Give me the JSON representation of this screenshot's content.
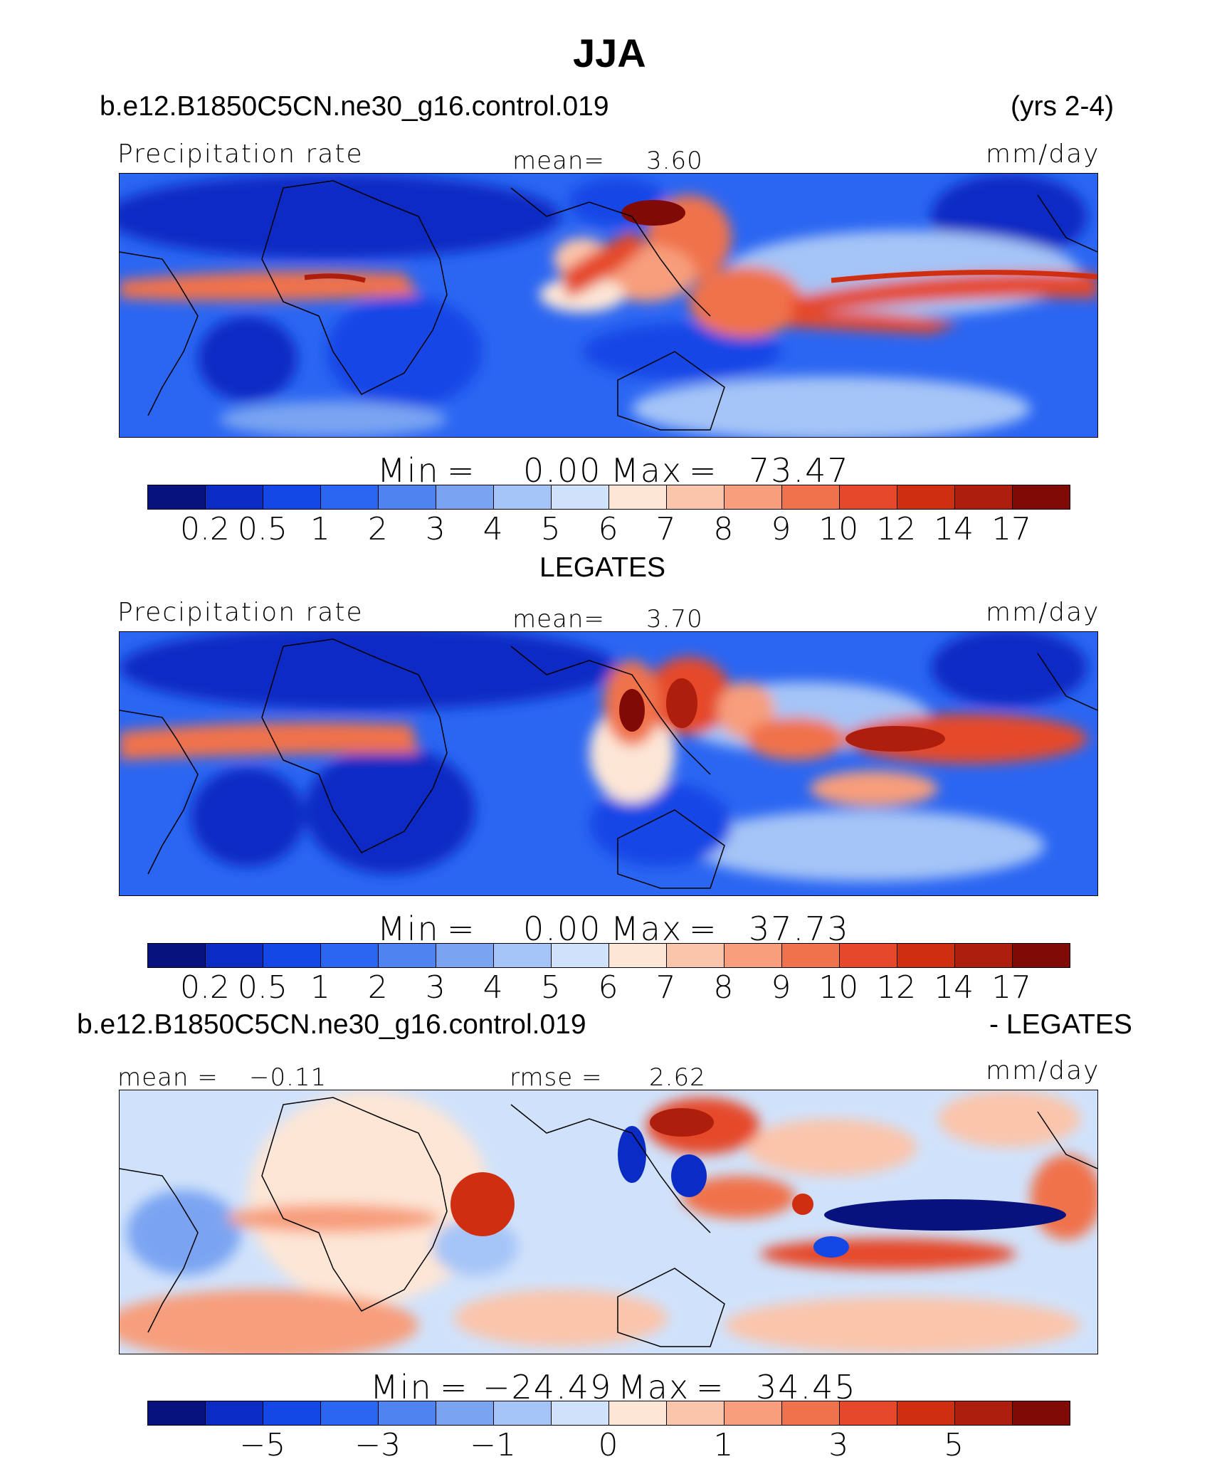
{
  "figure": {
    "title": "JJA",
    "palette": [
      "#08127e",
      "#0b2cc4",
      "#1347e6",
      "#2b66f2",
      "#4f84f0",
      "#7aa4f2",
      "#a5c4f7",
      "#d0e2fb",
      "#fde6d6",
      "#fbc5ab",
      "#f79e7c",
      "#f0724c",
      "#e5482a",
      "#cf2e10",
      "#ad1e0c",
      "#800a05"
    ]
  },
  "panel1": {
    "case": "b.e12.B1850C5CN.ne30_g16.control.019",
    "years": "(yrs 2-4)",
    "variable": "Precipitation rate",
    "mean_label": "mean=",
    "mean_value": "3.60",
    "units": "mm/day",
    "min_label": "Min",
    "min_eq": "=",
    "min_value": "0.00",
    "max_label": "Max",
    "max_eq": "=",
    "max_value": "73.47",
    "ticks": [
      "0.2",
      "0.5",
      "1",
      "2",
      "3",
      "4",
      "5",
      "6",
      "7",
      "8",
      "9",
      "10",
      "12",
      "14",
      "17"
    ]
  },
  "panel2": {
    "case": "LEGATES",
    "variable": "Precipitation rate",
    "mean_label": "mean=",
    "mean_value": "3.70",
    "units": "mm/day",
    "min_label": "Min",
    "min_eq": "=",
    "min_value": "0.00",
    "max_label": "Max",
    "max_eq": "=",
    "max_value": "37.73",
    "ticks": [
      "0.2",
      "0.5",
      "1",
      "2",
      "3",
      "4",
      "5",
      "6",
      "7",
      "8",
      "9",
      "10",
      "12",
      "14",
      "17"
    ]
  },
  "panel3": {
    "case": "b.e12.B1850C5CN.ne30_g16.control.019",
    "minus": "- LEGATES",
    "mean_label": "mean =",
    "mean_value": "−0.11",
    "rmse_label": "rmse =",
    "rmse_value": "2.62",
    "units": "mm/day",
    "min_label": "Min",
    "min_eq": "=",
    "min_value": "−24.49",
    "max_label": "Max",
    "max_eq": "=",
    "max_value": "34.45",
    "ticks": [
      "−5",
      "−3",
      "−1",
      "0",
      "1",
      "3",
      "5"
    ]
  }
}
